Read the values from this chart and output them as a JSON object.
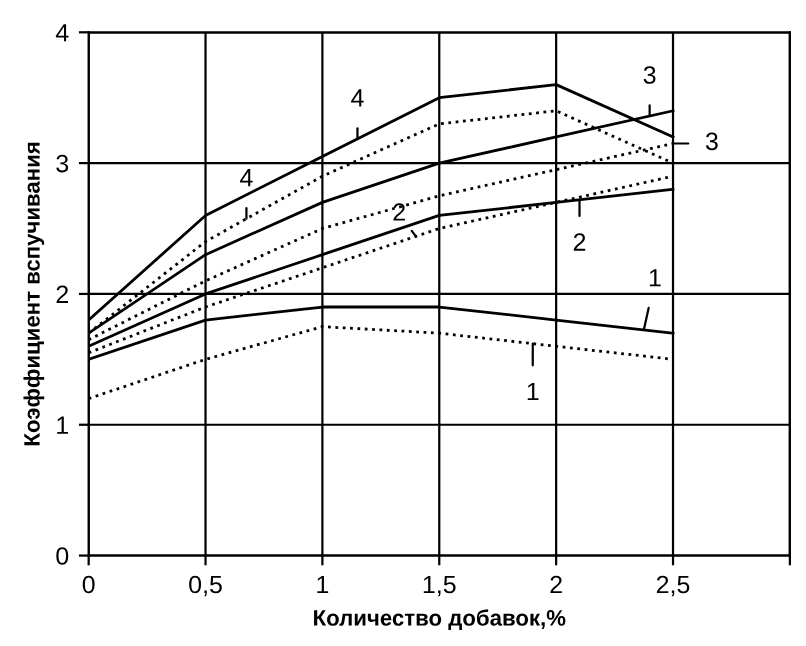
{
  "chart_data": {
    "type": "line",
    "xlabel": "Количество добавок,%",
    "ylabel": "Коэффициент вспучивания",
    "x": [
      0,
      0.5,
      1,
      1.5,
      2,
      2.5
    ],
    "series": [
      {
        "color": "#000000",
        "line_style": "solid",
        "values": [
          1.8,
          2.6,
          3.05,
          3.5,
          3.6,
          3.2
        ]
      },
      {
        "color": "#000000",
        "line_style": "dotted",
        "values": [
          1.7,
          2.4,
          2.9,
          3.3,
          3.4,
          3.0
        ]
      },
      {
        "color": "#000000",
        "line_style": "solid",
        "values": [
          1.7,
          2.3,
          2.7,
          3.0,
          3.2,
          3.4
        ]
      },
      {
        "color": "#000000",
        "line_style": "dotted",
        "values": [
          1.65,
          2.1,
          2.5,
          2.75,
          2.95,
          3.15
        ]
      },
      {
        "color": "#000000",
        "line_style": "solid",
        "values": [
          1.6,
          2.0,
          2.3,
          2.6,
          2.7,
          2.8
        ]
      },
      {
        "color": "#000000",
        "line_style": "dotted",
        "values": [
          1.55,
          1.9,
          2.2,
          2.5,
          2.7,
          2.9
        ]
      },
      {
        "color": "#000000",
        "line_style": "solid",
        "values": [
          1.5,
          1.8,
          1.9,
          1.9,
          1.8,
          1.7
        ]
      },
      {
        "color": "#000000",
        "line_style": "dotted",
        "values": [
          1.2,
          1.5,
          1.75,
          1.7,
          1.6,
          1.5
        ]
      }
    ],
    "annotations": [
      "4",
      "4",
      "3",
      "3",
      "2",
      "2",
      "1",
      "1"
    ],
    "xlim": [
      0,
      3
    ],
    "xticks": [
      0,
      {
        "value": 0.5,
        "label": "0,5"
      },
      1,
      {
        "value": 1.5,
        "label": "1,5"
      },
      2,
      {
        "value": 2.5,
        "label": "2,5"
      },
      {
        "value": 3,
        "label": null
      }
    ],
    "ylim": [
      0,
      4
    ],
    "yticks": [
      0,
      1,
      2,
      3,
      4
    ],
    "grid": true,
    "marker": "none"
  }
}
